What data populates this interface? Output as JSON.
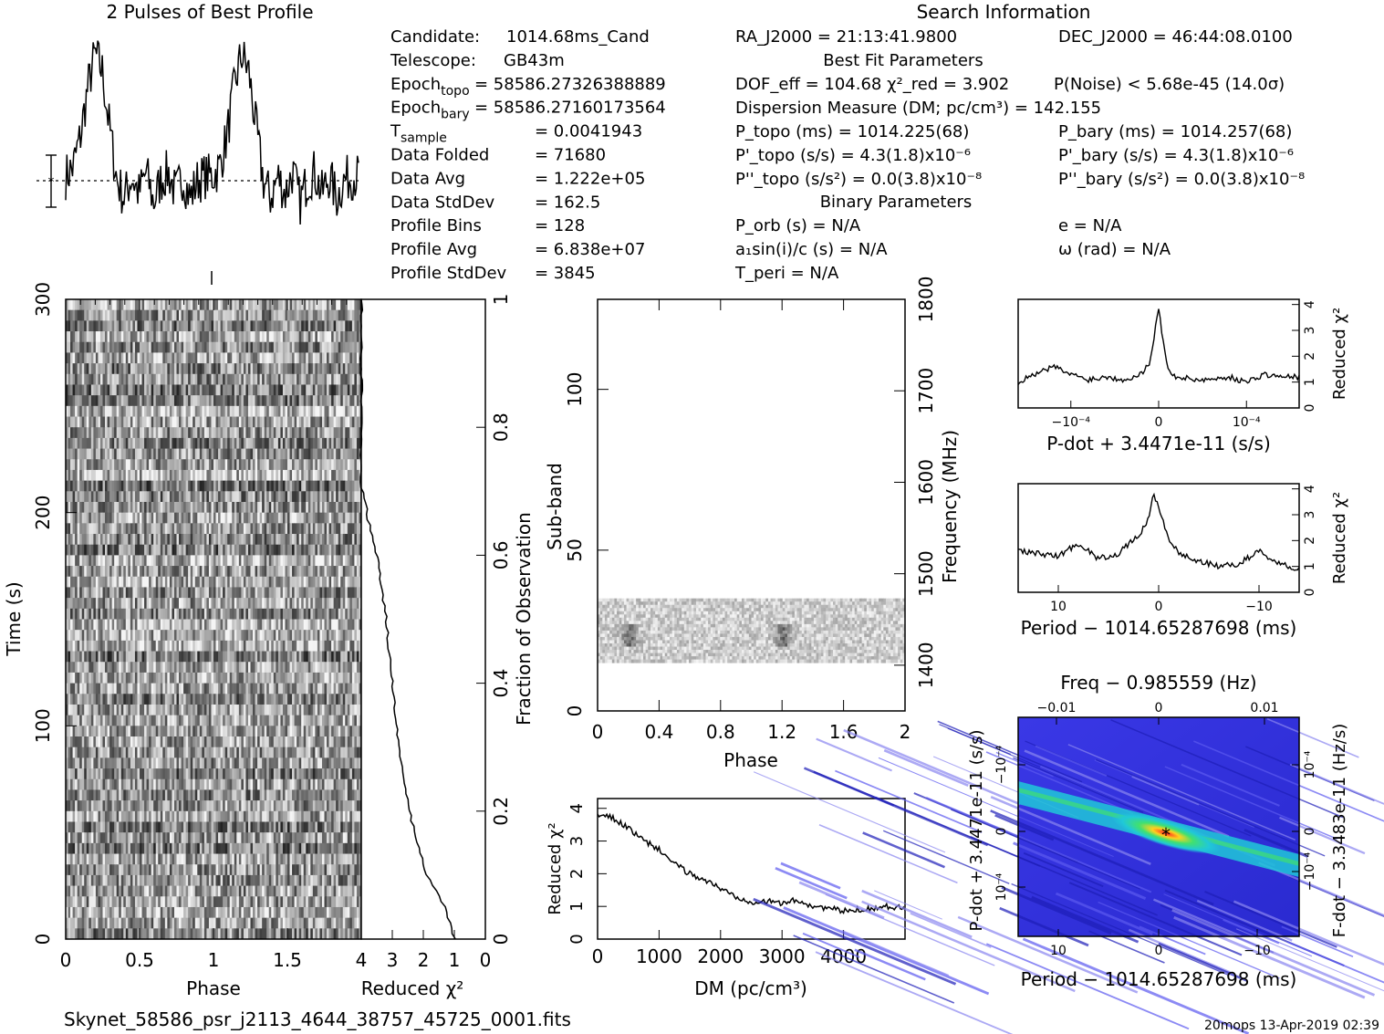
{
  "header": {
    "profile_title": "2 Pulses of Best Profile",
    "search_title": "Search Information",
    "best_fit_title": "Best Fit Parameters",
    "binary_title": "Binary Parameters"
  },
  "candidate_info": [
    {
      "label": "Candidate:",
      "value": "1014.68ms_Cand"
    },
    {
      "label": "Telescope:",
      "value": "GB43m"
    },
    {
      "label": "Epoch",
      "sub": "topo",
      "value": "= 58586.27326388889"
    },
    {
      "label": "Epoch",
      "sub": "bary",
      "value": "= 58586.27160173564"
    },
    {
      "label": "T",
      "sub": "sample",
      "value": "=   0.0041943"
    },
    {
      "label": "Data Folded",
      "value": "=   71680"
    },
    {
      "label": "Data Avg",
      "value": "=   1.222e+05"
    },
    {
      "label": "Data StdDev",
      "value": "=   162.5"
    },
    {
      "label": "Profile Bins",
      "value": "=   128"
    },
    {
      "label": "Profile Avg",
      "value": "=   6.838e+07"
    },
    {
      "label": "Profile StdDev",
      "value": "=   3845"
    }
  ],
  "search_info": {
    "ra": "RA_J2000 = 21:13:41.9800",
    "dec": "DEC_J2000 = 46:44:08.0100",
    "dof": "DOF_eff = 104.68  χ²_red = 3.902",
    "pnoise": "P(Noise) < 5.68e-45  (14.0σ)",
    "dm": "Dispersion Measure (DM; pc/cm³) = 142.155",
    "ptopo": "P_topo (ms) =  1014.225(68)",
    "pbary": "P_bary (ms) =  1014.257(68)",
    "pdtopo": "P'_topo (s/s) =  4.3(1.8)x10⁻⁶",
    "pdbary": "P'_bary (s/s) =  4.3(1.8)x10⁻⁶",
    "pddtopo": "P''_topo (s/s²) = 0.0(3.8)x10⁻⁸",
    "pddbary": "P''_bary (s/s²) = 0.0(3.8)x10⁻⁸",
    "porb": "P_orb (s) = N/A",
    "ecc": "e = N/A",
    "asini": "a₁sin(i)/c (s) = N/A",
    "omega": "ω (rad) = N/A",
    "tperi": "T_peri = N/A"
  },
  "footer": {
    "filename": "Skynet_58586_psr_j2113_4644_38757_45725_0001.fits",
    "stamp": "20mops 13-Apr-2019 02:39"
  },
  "colors": {
    "ink": "#000000",
    "paper": "#ffffff",
    "map_low": "#2a2ad8",
    "map_mid": "#20d0d0",
    "map_high": "#ff2020"
  },
  "chart_data": [
    {
      "id": "profile",
      "type": "line",
      "title": "2 Pulses of Best Profile",
      "xlim": [
        0,
        2
      ],
      "x": [
        0,
        0.05,
        0.1,
        0.15,
        0.2,
        0.25,
        0.3,
        0.35,
        0.4,
        0.45,
        0.5,
        0.55,
        0.6,
        0.65,
        0.7,
        0.75,
        0.8,
        0.85,
        0.9,
        0.95,
        1.0,
        1.05,
        1.1,
        1.15,
        1.2,
        1.25,
        1.3,
        1.35,
        1.4,
        1.45,
        1.5,
        1.55,
        1.6,
        1.65,
        1.7,
        1.75,
        1.8,
        1.85,
        1.9,
        1.95,
        2.0
      ],
      "values": [
        0.2,
        0.4,
        1.1,
        2.2,
        3.0,
        2.6,
        1.3,
        0.1,
        -0.3,
        0.2,
        -0.2,
        0.3,
        -0.4,
        0.1,
        0.3,
        -0.2,
        0.2,
        -0.3,
        0.1,
        0.2,
        0.2,
        0.4,
        1.1,
        2.2,
        3.0,
        2.6,
        1.3,
        0.1,
        -0.3,
        0.2,
        -0.2,
        0.3,
        -0.4,
        0.1,
        0.3,
        -0.2,
        0.2,
        -0.3,
        0.1,
        0.2,
        0.2
      ]
    },
    {
      "id": "time_phase",
      "type": "heatmap",
      "xlabel": "Phase",
      "ylabel": "Time (s)",
      "right_label": "Fraction of Observation",
      "xlim": [
        0,
        2
      ],
      "ylim": [
        0,
        300
      ],
      "x_ticks": [
        "0",
        "0.5",
        "1",
        "1.5"
      ],
      "y_ticks": [
        "0",
        "100",
        "200",
        "300"
      ],
      "right_ticks": [
        "0",
        "0.2",
        "0.4",
        "0.6",
        "0.8",
        "1"
      ]
    },
    {
      "id": "time_chi2",
      "type": "line",
      "xlabel": "Reduced χ²",
      "xlim": [
        4,
        0
      ],
      "x_ticks": [
        "4",
        "3",
        "2",
        "1",
        "0"
      ],
      "fraction": [
        0,
        0.05,
        0.1,
        0.15,
        0.2,
        0.25,
        0.3,
        0.35,
        0.4,
        0.45,
        0.5,
        0.55,
        0.6,
        0.65,
        0.7,
        0.75,
        0.8,
        0.85,
        0.9,
        0.95,
        1.0
      ],
      "values": [
        1.0,
        1.3,
        1.9,
        2.2,
        2.45,
        2.65,
        2.8,
        2.9,
        3.0,
        3.1,
        3.2,
        3.35,
        3.5,
        3.75,
        3.95,
        4.2,
        4.4,
        4.75,
        5.0,
        5.6,
        8.0
      ]
    },
    {
      "id": "subband_phase",
      "type": "heatmap",
      "xlabel": "Phase",
      "ylabel": "Sub-band",
      "right_label": "Frequency (MHz)",
      "xlim": [
        0,
        2
      ],
      "ylim": [
        0,
        128
      ],
      "right_lim": [
        1350,
        1800
      ],
      "x_ticks": [
        "0",
        "0.4",
        "0.8",
        "1.2",
        "1.6",
        "2"
      ],
      "y_ticks": [
        "0",
        "50",
        "100"
      ],
      "right_ticks": [
        "1400",
        "1500",
        "1600",
        "1700",
        "1800"
      ],
      "occupied_subbands": [
        15,
        35
      ]
    },
    {
      "id": "dm_chi2",
      "type": "line",
      "xlabel": "DM (pc/cm³)",
      "ylabel": "Reduced χ²",
      "xlim": [
        0,
        5000
      ],
      "ylim": [
        0,
        4.3
      ],
      "x_ticks": [
        "0",
        "1000",
        "2000",
        "3000",
        "4000"
      ],
      "y_ticks": [
        "0",
        "1",
        "2",
        "3",
        "4"
      ],
      "x": [
        0,
        250,
        500,
        750,
        1000,
        1250,
        1500,
        1750,
        2000,
        2250,
        2500,
        2750,
        3000,
        3250,
        3500,
        3750,
        4000,
        4250,
        4500,
        4750,
        5000
      ],
      "values": [
        3.8,
        3.7,
        3.4,
        3.0,
        2.75,
        2.3,
        2.0,
        1.8,
        1.55,
        1.3,
        1.15,
        1.15,
        1.1,
        1.2,
        1.0,
        0.95,
        0.85,
        0.9,
        0.95,
        1.0,
        0.95
      ]
    },
    {
      "id": "pdot_chi2",
      "type": "line",
      "xlabel": "P-dot + 3.4471e-11 (s/s)",
      "ylabel": "Reduced χ²",
      "xlim": [
        -0.00016,
        0.00016
      ],
      "ylim": [
        0,
        4.2
      ],
      "x_ticks": [
        "10⁻⁴",
        "0",
        "−10⁻⁴"
      ],
      "y_ticks": [
        "0",
        "1",
        "2",
        "3",
        "4"
      ],
      "x": [
        -0.00016,
        -0.00014,
        -0.00012,
        -0.0001,
        -8e-05,
        -6e-05,
        -4e-05,
        -2e-05,
        -1e-05,
        -5e-06,
        0,
        5e-06,
        1e-05,
        2e-05,
        4e-05,
        6e-05,
        8e-05,
        0.0001,
        0.00012,
        0.00014,
        0.00016
      ],
      "values": [
        1.0,
        1.3,
        1.6,
        1.3,
        1.1,
        1.2,
        1.1,
        1.3,
        1.8,
        2.8,
        3.9,
        2.6,
        1.5,
        1.2,
        1.1,
        1.1,
        1.2,
        1.0,
        1.3,
        1.2,
        1.2
      ]
    },
    {
      "id": "period_chi2",
      "type": "line",
      "xlabel": "Period − 1014.65287698 (ms)",
      "ylabel": "Reduced χ²",
      "xlim": [
        14,
        -14
      ],
      "ylim": [
        0,
        4.2
      ],
      "x_ticks": [
        "10",
        "0",
        "−10"
      ],
      "y_ticks": [
        "0",
        "1",
        "2",
        "3",
        "4"
      ],
      "x": [
        14,
        12,
        10,
        8,
        6,
        4,
        2,
        1,
        0.5,
        0,
        -1,
        -2,
        -4,
        -6,
        -8,
        -10,
        -12,
        -14
      ],
      "values": [
        1.6,
        1.5,
        1.4,
        1.9,
        1.3,
        1.5,
        2.2,
        2.8,
        3.9,
        3.2,
        2.1,
        1.5,
        1.2,
        1.0,
        1.1,
        1.6,
        1.1,
        0.9
      ]
    },
    {
      "id": "ppdot",
      "type": "heatmap",
      "title": "Freq − 0.985559 (Hz)",
      "xlabel": "Period − 1014.65287698 (ms)",
      "ylabel": "P-dot + 3.4471e-11 (s/s)",
      "right_label": "F-dot − 3.3483e-11 (Hz/s)",
      "x_ticks": [
        "10",
        "0",
        "−10"
      ],
      "top_ticks": [
        "−0.01",
        "0",
        "0.01"
      ],
      "y_ticks": [
        "10⁻⁴",
        "0",
        "−10⁻⁴"
      ],
      "right_ticks": [
        "−10⁻⁴",
        "0",
        "10⁻⁴"
      ]
    }
  ]
}
